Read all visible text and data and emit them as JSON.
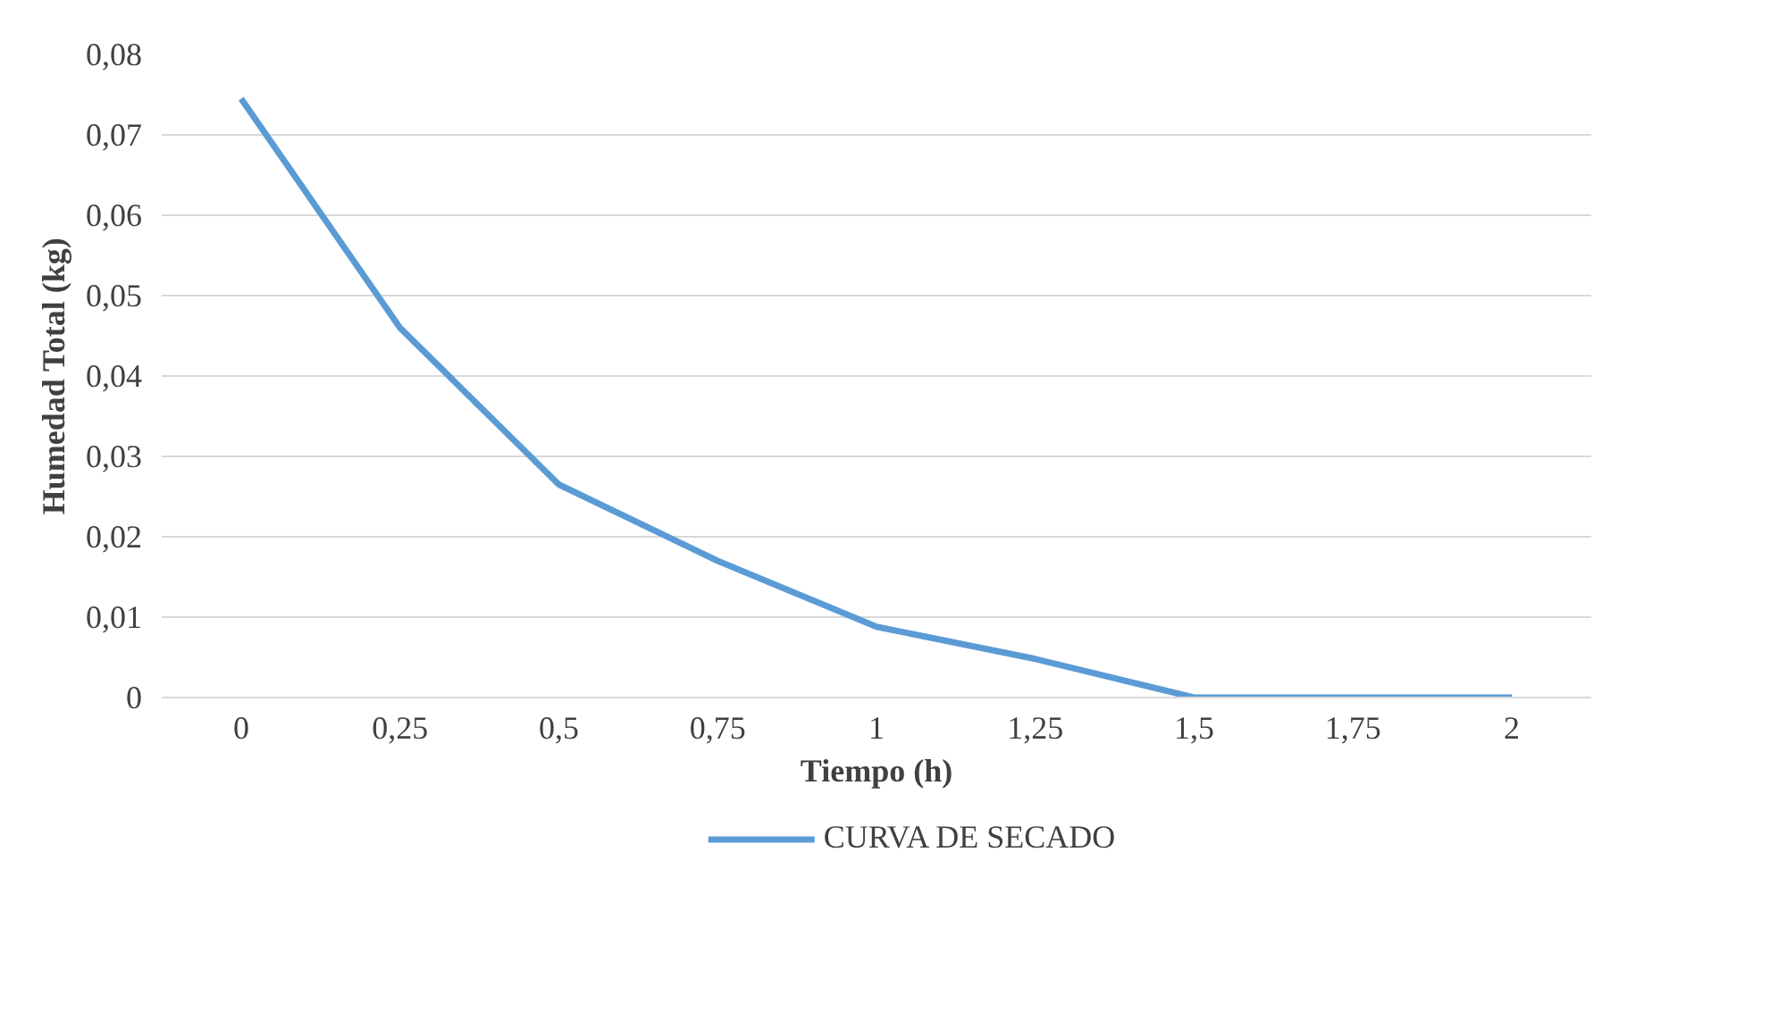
{
  "chart_data": {
    "type": "line",
    "xlabel": "Tiempo (h)",
    "ylabel": "Humedad Total (kg)",
    "categories": [
      "0",
      "0,25",
      "0,5",
      "0,75",
      "1",
      "1,25",
      "1,5",
      "1,75",
      "2"
    ],
    "series": [
      {
        "name": "CURVA DE SECADO",
        "color": "#5b9bd5",
        "values": [
          0.0745,
          0.046,
          0.0265,
          0.017,
          0.0088,
          0.0048,
          0,
          0,
          0
        ]
      }
    ],
    "ylim": [
      0,
      0.08
    ],
    "yticks": [
      0,
      {
        "value": 0.01,
        "label": "0,01"
      },
      {
        "value": 0.02,
        "label": "0,02"
      },
      {
        "value": 0.03,
        "label": "0,03"
      },
      {
        "value": 0.04,
        "label": "0,04"
      },
      {
        "value": 0.05,
        "label": "0,05"
      },
      {
        "value": 0.06,
        "label": "0,06"
      },
      {
        "value": 0.07,
        "label": "0,07"
      },
      {
        "value": 0.08,
        "label": "0,08"
      }
    ],
    "grid": "y",
    "legend": "bottom",
    "marker": "none",
    "line_style": "solid"
  }
}
